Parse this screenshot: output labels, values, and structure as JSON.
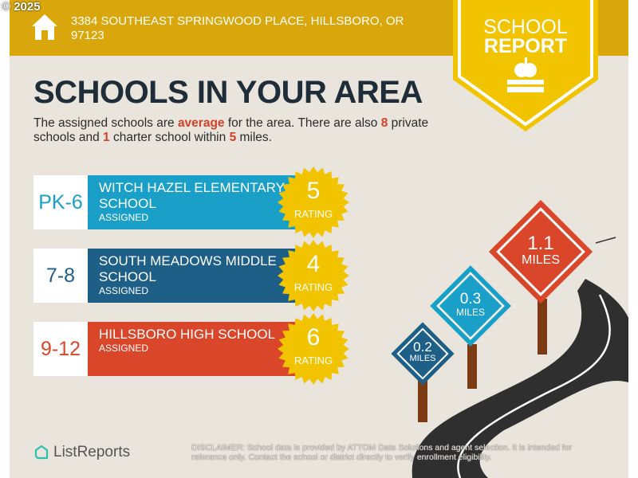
{
  "copyright": "© 2025",
  "header": {
    "address": "3384 SOUTHEAST SPRINGWOOD PLACE, HILLSBORO, OR 97123",
    "icon": "house-icon"
  },
  "badge": {
    "line1": "SCHOOL",
    "line2": "REPORT",
    "icon": "apple-books-icon"
  },
  "title": "SCHOOLS IN YOUR AREA",
  "summary": {
    "p1": "The assigned schools are ",
    "quality": "average",
    "p2": " for the area. There are also ",
    "private": "8",
    "p3": " private schools and ",
    "charter": "1",
    "p4": " charter school within ",
    "miles": "5",
    "p5": " miles."
  },
  "schools": [
    {
      "grades": "PK-6",
      "name": "WITCH HAZEL ELEMENTARY SCHOOL",
      "status": "ASSIGNED",
      "rating": "5",
      "rating_label": "RATING",
      "distance": "0.2",
      "distance_unit": "MILES",
      "color": "#1aa0c8"
    },
    {
      "grades": "7-8",
      "name": "SOUTH MEADOWS MIDDLE SCHOOL",
      "status": "ASSIGNED",
      "rating": "4",
      "rating_label": "RATING",
      "distance": "0.3",
      "distance_unit": "MILES",
      "color": "#1d5f86"
    },
    {
      "grades": "9-12",
      "name": "HILLSBORO HIGH SCHOOL",
      "status": "ASSIGNED",
      "rating": "6",
      "rating_label": "RATING",
      "distance": "1.1",
      "distance_unit": "MILES",
      "color": "#d9462a"
    }
  ],
  "footer": {
    "brand": "ListReports",
    "disclaimer_label": "DISCLAIMER:",
    "disclaimer": " School data is provided by ATTOM Data Solutions and agent selection. It is intended for reference only. Contact the school or district directly to verify enrollment eligibility."
  }
}
